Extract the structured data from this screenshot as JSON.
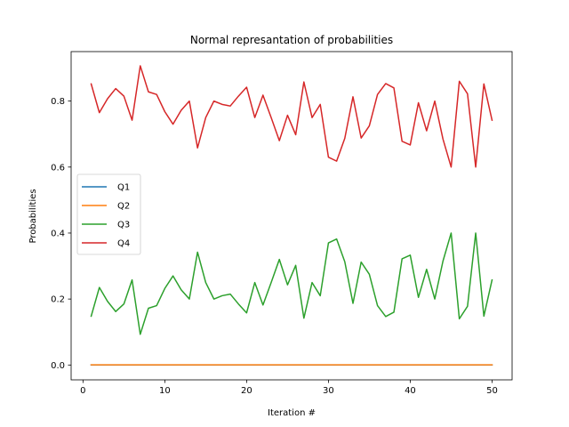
{
  "chart_data": {
    "type": "line",
    "title": "Normal represantation of probabilities",
    "xlabel": "Iteration #",
    "ylabel": "Probabilities",
    "xlim": [
      -1.45,
      52.45
    ],
    "ylim": [
      -0.045,
      0.95
    ],
    "xticks": [
      0,
      10,
      20,
      30,
      40,
      50
    ],
    "yticks": [
      0.0,
      0.2,
      0.4,
      0.6,
      0.8
    ],
    "ytick_labels": [
      "0.0",
      "0.2",
      "0.4",
      "0.6",
      "0.8"
    ],
    "grid": false,
    "legend_position": "center-left",
    "x": [
      1,
      2,
      3,
      4,
      5,
      6,
      7,
      8,
      9,
      10,
      11,
      12,
      13,
      14,
      15,
      16,
      17,
      18,
      19,
      20,
      21,
      22,
      23,
      24,
      25,
      26,
      27,
      28,
      29,
      30,
      31,
      32,
      33,
      34,
      35,
      36,
      37,
      38,
      39,
      40,
      41,
      42,
      43,
      44,
      45,
      46,
      47,
      48,
      49,
      50
    ],
    "series": [
      {
        "name": "Q1",
        "color": "#1f77b4",
        "values": [
          0,
          0,
          0,
          0,
          0,
          0,
          0,
          0,
          0,
          0,
          0,
          0,
          0,
          0,
          0,
          0,
          0,
          0,
          0,
          0,
          0,
          0,
          0,
          0,
          0,
          0,
          0,
          0,
          0,
          0,
          0,
          0,
          0,
          0,
          0,
          0,
          0,
          0,
          0,
          0,
          0,
          0,
          0,
          0,
          0,
          0,
          0,
          0,
          0,
          0
        ]
      },
      {
        "name": "Q2",
        "color": "#ff7f0e",
        "values": [
          0.0005,
          0.0004,
          0.0005,
          0.0004,
          0.0005,
          0.0004,
          0.0005,
          0.0004,
          0.0005,
          0.0004,
          0.0005,
          0.0004,
          0.0005,
          0.0004,
          0.0005,
          0.0004,
          0.0005,
          0.0004,
          0.0005,
          0.0004,
          0.0005,
          0.0004,
          0.0005,
          0.0004,
          0.0005,
          0.0004,
          0.0005,
          0.0004,
          0.0005,
          0.0004,
          0.0005,
          0.0004,
          0.0005,
          0.0004,
          0.0005,
          0.0004,
          0.0005,
          0.0004,
          0.0005,
          0.0004,
          0.0005,
          0.0004,
          0.0005,
          0.0004,
          0.0005,
          0.0004,
          0.0005,
          0.0004,
          0.0005,
          0.0004
        ]
      },
      {
        "name": "Q3",
        "color": "#2ca02c",
        "values": [
          0.148,
          0.235,
          0.193,
          0.162,
          0.185,
          0.258,
          0.093,
          0.172,
          0.18,
          0.232,
          0.27,
          0.228,
          0.2,
          0.342,
          0.25,
          0.2,
          0.21,
          0.215,
          0.185,
          0.158,
          0.25,
          0.182,
          0.25,
          0.32,
          0.243,
          0.302,
          0.142,
          0.25,
          0.21,
          0.37,
          0.382,
          0.313,
          0.187,
          0.312,
          0.275,
          0.18,
          0.147,
          0.16,
          0.322,
          0.333,
          0.205,
          0.29,
          0.2,
          0.315,
          0.4,
          0.14,
          0.178,
          0.4,
          0.148,
          0.258
        ]
      },
      {
        "name": "Q4",
        "color": "#d62728",
        "values": [
          0.852,
          0.765,
          0.807,
          0.838,
          0.815,
          0.742,
          0.907,
          0.828,
          0.82,
          0.768,
          0.73,
          0.772,
          0.8,
          0.658,
          0.75,
          0.8,
          0.79,
          0.785,
          0.815,
          0.842,
          0.75,
          0.818,
          0.75,
          0.68,
          0.757,
          0.698,
          0.858,
          0.75,
          0.79,
          0.63,
          0.618,
          0.687,
          0.813,
          0.688,
          0.725,
          0.82,
          0.853,
          0.84,
          0.678,
          0.667,
          0.795,
          0.71,
          0.8,
          0.685,
          0.6,
          0.86,
          0.822,
          0.6,
          0.852,
          0.742
        ]
      }
    ]
  }
}
